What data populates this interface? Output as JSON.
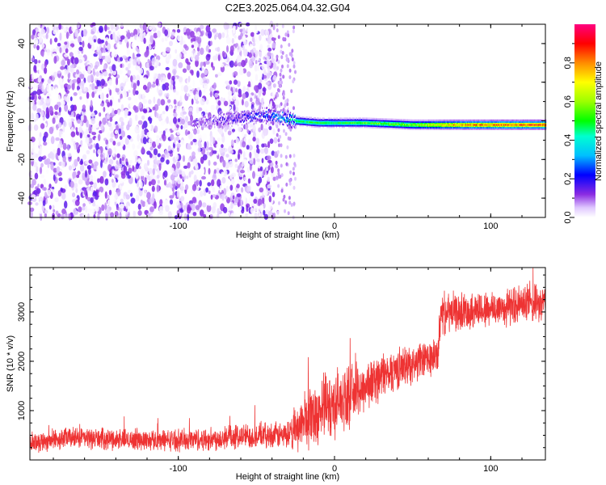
{
  "title": "C2E3.2025.064.04.32.G04",
  "chart_data": [
    {
      "type": "heatmap",
      "xlabel": "Height of straight line (km)",
      "ylabel": "Frequency (Hz)",
      "xlim": [
        -195,
        135
      ],
      "ylim": [
        -50,
        50
      ],
      "xticks": [
        -100,
        0,
        100
      ],
      "yticks": [
        -40,
        -20,
        0,
        20,
        40
      ],
      "grid": false,
      "colorbar": {
        "label": "Normalized spectral amplitude",
        "range": [
          0,
          1
        ],
        "ticks": [
          0.0,
          0.2,
          0.4,
          0.6,
          0.8
        ],
        "colormap": "rainbow"
      },
      "signal_line": {
        "description_points_x": [
          -92,
          -80,
          -60,
          -40,
          -25,
          -10,
          0,
          20,
          50,
          80,
          100,
          135
        ],
        "frequency_y": [
          -2,
          0,
          2,
          3,
          0,
          -1,
          -1,
          -1,
          -2,
          -2,
          -2,
          -2
        ],
        "amplitude": [
          0.1,
          0.15,
          0.2,
          0.3,
          0.5,
          0.5,
          0.5,
          0.55,
          0.6,
          0.8,
          0.85,
          0.9
        ]
      },
      "noise_region_x": [
        -195,
        -37
      ],
      "sparse_region_x": [
        -37,
        -25
      ]
    },
    {
      "type": "line",
      "xlabel": "Height of straight line (km)",
      "ylabel": "SNR (10 * v/v)",
      "xlim": [
        -195,
        135
      ],
      "ylim": [
        0,
        3900
      ],
      "xticks": [
        -100,
        0,
        100
      ],
      "yticks": [
        1000,
        2000,
        3000
      ],
      "grid": false,
      "series": [
        {
          "color": "#ee3333",
          "x": [
            -195,
            -170,
            -140,
            -110,
            -80,
            -60,
            -40,
            -28,
            -20,
            -10,
            0,
            10,
            20,
            30,
            40,
            50,
            60,
            66,
            68,
            80,
            90,
            100,
            110,
            120,
            135
          ],
          "y": [
            350,
            450,
            420,
            400,
            420,
            480,
            500,
            500,
            800,
            1000,
            1150,
            1300,
            1500,
            1700,
            1850,
            1950,
            2050,
            2100,
            2950,
            3000,
            3050,
            3050,
            3100,
            3150,
            3150
          ],
          "noise_amplitude": [
            250,
            250,
            250,
            250,
            280,
            300,
            300,
            350,
            700,
            800,
            800,
            700,
            600,
            550,
            500,
            450,
            450,
            450,
            500,
            450,
            450,
            450,
            450,
            450,
            450
          ]
        }
      ]
    }
  ]
}
